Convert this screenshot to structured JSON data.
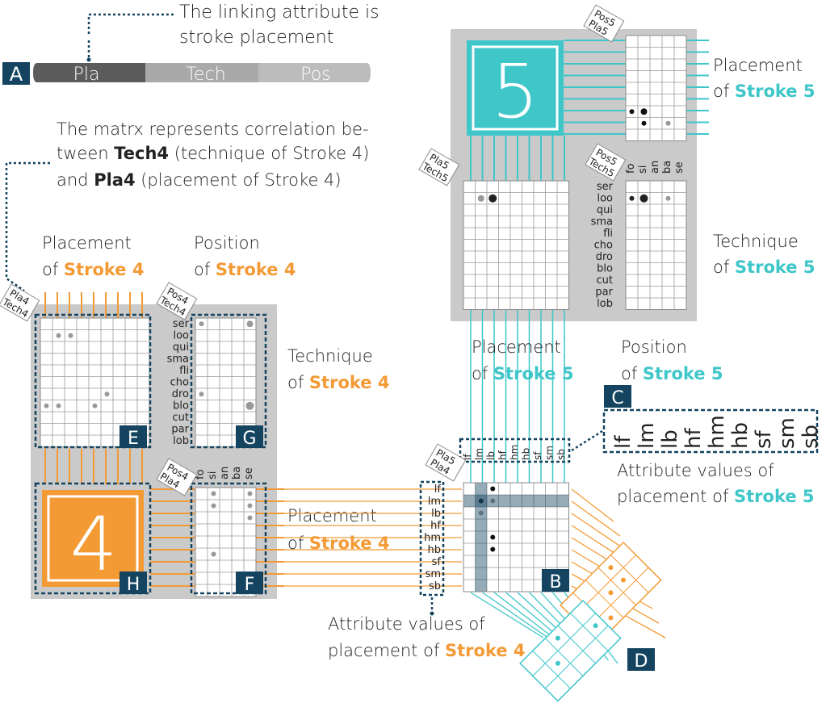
{
  "colors": {
    "orange": "#f39a35",
    "teal": "#3ec6c9",
    "navy": "#14445f",
    "panel": "#cacaca",
    "text": "#222222",
    "seg_dark": "#5c5c5c",
    "seg_mid": "#a9a9a9",
    "seg_light": "#bcbcbc"
  },
  "legend_bar": {
    "badge": "A",
    "segments": [
      "Pla",
      "Tech",
      "Pos"
    ]
  },
  "annotations": {
    "linking_line1": "The linking attribute is",
    "linking_line2": "stroke placement",
    "matrix_line1": "The matrx represents correlation be-",
    "matrix_line2_pre": "tween ",
    "matrix_line2_bold": "Tech4",
    "matrix_line2_post": " (technique of Stroke 4)",
    "matrix_line3_pre": "and ",
    "matrix_line3_bold": "Pla4",
    "matrix_line3_post": " (placement of Stroke 4)"
  },
  "labels": {
    "placement": "Placement",
    "position": "Position",
    "technique": "Technique",
    "of": "of ",
    "stroke4": "Stroke 4",
    "stroke5": "Stroke 5",
    "attr_values_line1": "Attribute values of",
    "attr_values_line2": "placement of "
  },
  "badges": {
    "B": "B",
    "C": "C",
    "D": "D",
    "E": "E",
    "F": "F",
    "G": "G",
    "H": "H"
  },
  "stroke_numbers": {
    "four": "4",
    "five": "5"
  },
  "tags": {
    "pla4": "Pla4",
    "tech4": "Tech4",
    "pos4": "Pos4",
    "pla5": "Pla5",
    "tech5": "Tech5",
    "pos5": "Pos5"
  },
  "technique_values": [
    "ser",
    "loo",
    "qui",
    "sma",
    "fli",
    "cho",
    "dro",
    "blo",
    "cut",
    "par",
    "lob"
  ],
  "position_values": [
    "fo",
    "si",
    "an",
    "ba",
    "se"
  ],
  "placement_values": [
    "lf",
    "lm",
    "lb",
    "hf",
    "hm",
    "hb",
    "sf",
    "sm",
    "sb"
  ]
}
